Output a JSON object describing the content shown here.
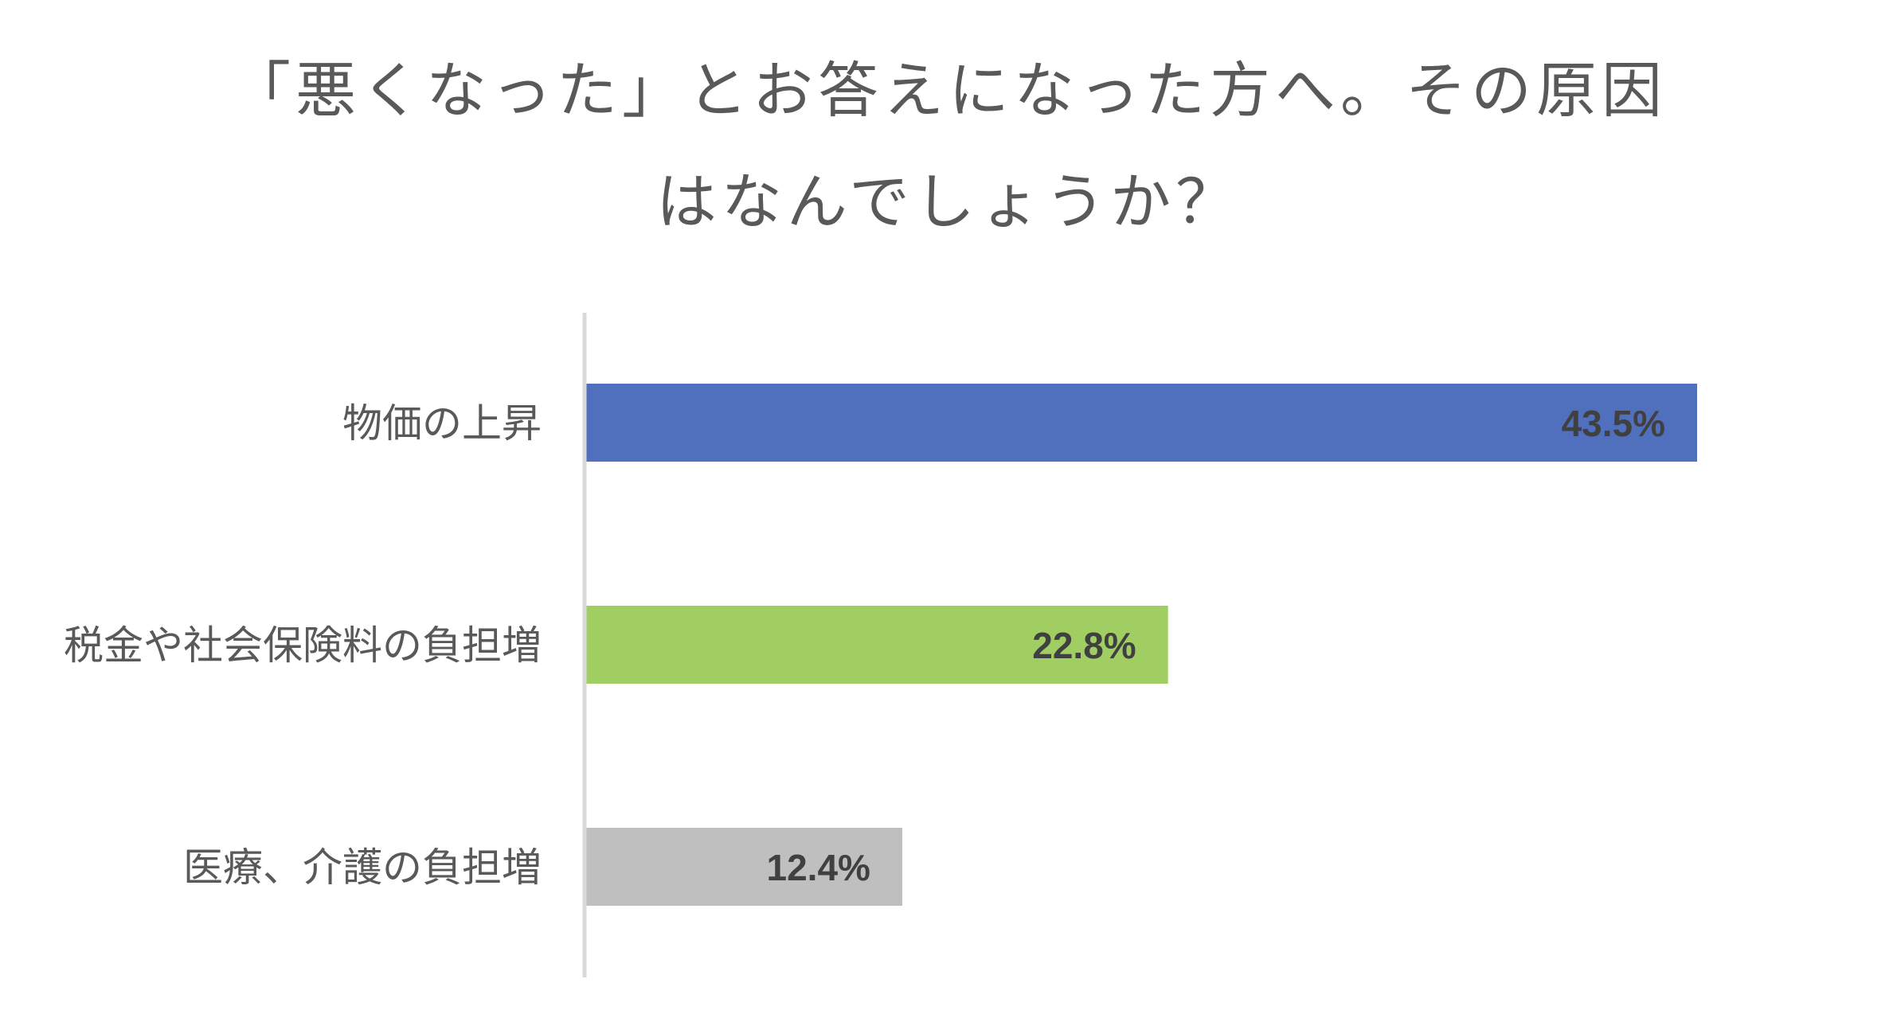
{
  "chart_data": {
    "type": "bar",
    "orientation": "horizontal",
    "title_lines": [
      "「悪くなった」とお答えになった方へ。その原因",
      "はなんでしょうか？"
    ],
    "categories": [
      "物価の上昇",
      "税金や社会保険料の負担増",
      "医療、介護の負担増"
    ],
    "values": [
      43.5,
      22.8,
      12.4
    ],
    "value_labels": [
      "43.5%",
      "22.8%",
      "12.4%"
    ],
    "colors": [
      "#5070BE",
      "#A0CE62",
      "#BFBFBF"
    ],
    "xlim": [
      0,
      45
    ],
    "grid": false,
    "legend": "none",
    "xlabel": "",
    "ylabel": ""
  }
}
